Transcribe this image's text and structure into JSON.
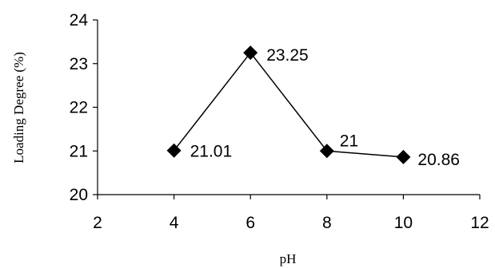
{
  "chart_data": {
    "type": "line",
    "title": "",
    "xlabel": "pH",
    "ylabel": "Loading Degree (%)",
    "xlim": [
      2,
      12
    ],
    "ylim": [
      20,
      24
    ],
    "x_ticks": [
      2,
      4,
      6,
      8,
      10,
      12
    ],
    "y_ticks": [
      20,
      21,
      22,
      23,
      24
    ],
    "grid": false,
    "legend": "none",
    "series": [
      {
        "x": [
          4,
          6,
          8,
          10
        ],
        "y": [
          21.01,
          23.25,
          21,
          20.86
        ],
        "data_labels": [
          "21.01",
          "23.25",
          "21",
          "20.86"
        ],
        "marker": "diamond",
        "color": "#000000"
      }
    ]
  }
}
